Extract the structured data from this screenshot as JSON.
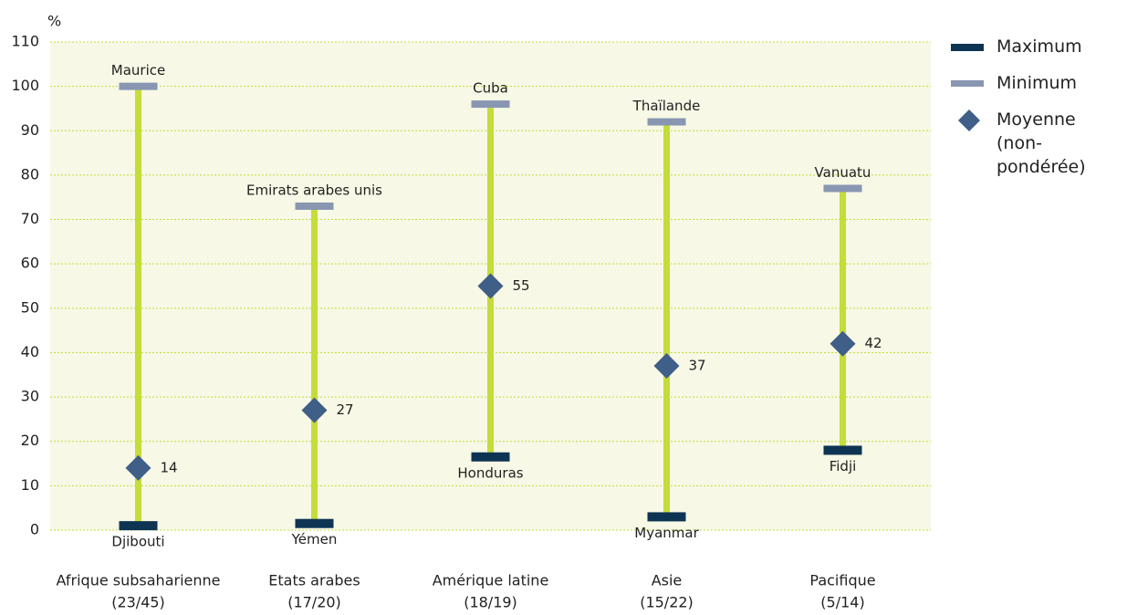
{
  "chart_data": {
    "type": "range",
    "y_label": "%",
    "categories": [
      "Afrique subsaharienne",
      "Etats arabes",
      "Amérique latine",
      "Asie",
      "Pacifique"
    ],
    "category_counts": [
      "(23/45)",
      "(17/20)",
      "(18/19)",
      "(15/22)",
      "(5/14)"
    ],
    "series": [
      {
        "name": "Maximum",
        "color": "#0e3453",
        "values": [
          1,
          1.5,
          16.5,
          3,
          18
        ],
        "labels": [
          "Djibouti",
          "Yémen",
          "Honduras",
          "Myanmar",
          "Fidji"
        ]
      },
      {
        "name": "Minimum",
        "color": "#8896b2",
        "values": [
          100,
          73,
          96,
          92,
          77
        ],
        "labels": [
          "Maurice",
          "Emirats arabes unis",
          "Cuba",
          "Thaïlande",
          "Vanuatu"
        ]
      },
      {
        "name": "Moyenne (non-pondérée)",
        "color": "#3f5e88",
        "values": [
          14,
          27,
          55,
          37,
          42
        ]
      }
    ],
    "range_color": "#c5dc3a",
    "ylim": [
      0,
      110
    ],
    "yticks": [
      0,
      10,
      20,
      30,
      40,
      50,
      60,
      70,
      80,
      90,
      100,
      110
    ],
    "grid": true,
    "legend": "right"
  }
}
